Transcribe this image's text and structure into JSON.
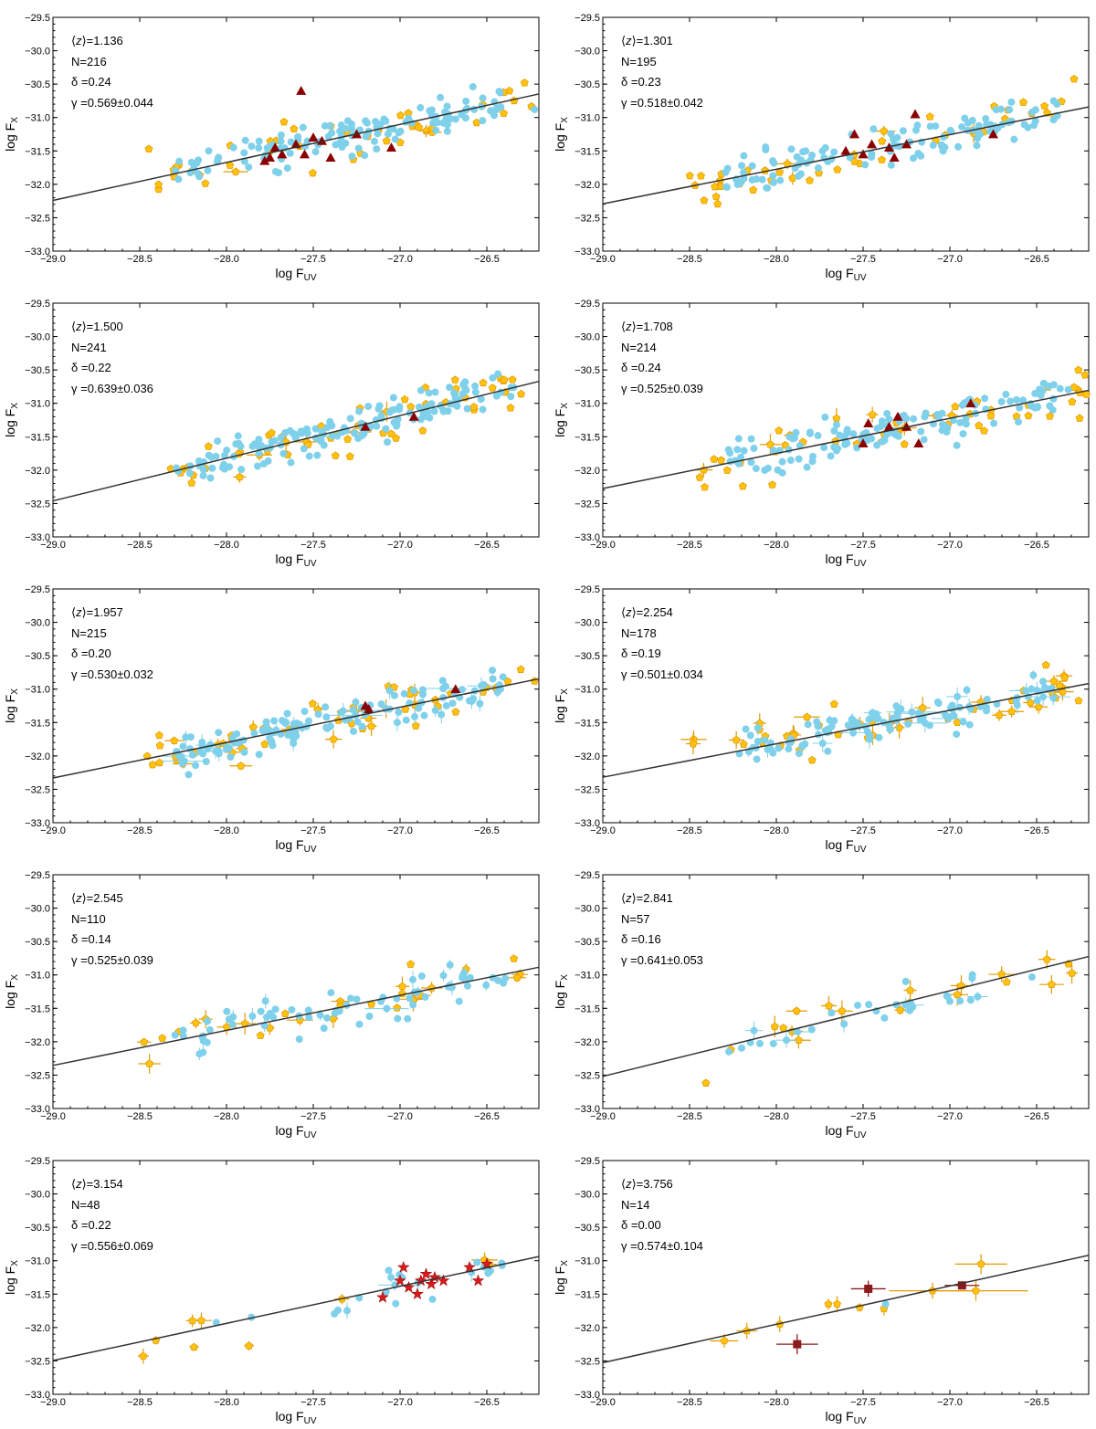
{
  "figure": {
    "colors": {
      "sdss": "#7fd0ea",
      "xmm": "#ffc20e",
      "xmm_edge": "#e59a00",
      "red_tri": "#8b0000",
      "red_star": "#d81b1b",
      "square": "#8b1a1a",
      "line": "#333333"
    },
    "axis_labels": {
      "x_base": "log F",
      "x_sub": "UV",
      "y_base": "log F",
      "y_sub": "X"
    },
    "annotation_labels": {
      "N": "N=",
      "delta": "δ =",
      "gamma": "γ ="
    },
    "x_ticks": [
      "−29.0",
      "−28.5",
      "−28.0",
      "−27.5",
      "−27.0",
      "−26.5"
    ],
    "y_ticks": [
      "−29.5",
      "−30.0",
      "−30.5",
      "−31.0",
      "−31.5",
      "−32.0",
      "−32.5",
      "−33.0"
    ]
  },
  "chart_data": [
    {
      "type": "scatter",
      "z": "1.136",
      "N": "216",
      "delta": "0.24",
      "gamma": "0.569±0.044",
      "xlim": [
        -29.0,
        -26.2
      ],
      "ylim": [
        -33.0,
        -29.5
      ],
      "fit": {
        "slope": 0.569,
        "intercept": -15.74
      },
      "seed": 11,
      "n_blue": 130,
      "n_yellow": 45,
      "yellow_err": 4,
      "red_triangles": [
        [
          -27.75,
          -31.6
        ],
        [
          -27.72,
          -31.45
        ],
        [
          -27.68,
          -31.55
        ],
        [
          -27.6,
          -31.4
        ],
        [
          -27.55,
          -31.55
        ],
        [
          -27.5,
          -31.3
        ],
        [
          -27.45,
          -31.35
        ],
        [
          -27.4,
          -31.6
        ],
        [
          -27.25,
          -31.25
        ],
        [
          -27.05,
          -31.45
        ],
        [
          -27.57,
          -30.6
        ],
        [
          -27.78,
          -31.65
        ]
      ],
      "red_stars": [],
      "squares": []
    },
    {
      "type": "scatter",
      "z": "1.301",
      "N": "195",
      "delta": "0.23",
      "gamma": "0.518±0.042",
      "xlim": [
        -29.0,
        -26.2
      ],
      "ylim": [
        -33.0,
        -29.5
      ],
      "fit": {
        "slope": 0.518,
        "intercept": -17.27
      },
      "seed": 23,
      "n_blue": 120,
      "n_yellow": 45,
      "yellow_err": 4,
      "red_triangles": [
        [
          -27.55,
          -31.25
        ],
        [
          -27.5,
          -31.55
        ],
        [
          -27.45,
          -31.4
        ],
        [
          -27.35,
          -31.45
        ],
        [
          -27.32,
          -31.6
        ],
        [
          -27.25,
          -31.4
        ],
        [
          -27.2,
          -30.95
        ],
        [
          -26.75,
          -31.25
        ],
        [
          -27.6,
          -31.5
        ]
      ],
      "red_stars": [],
      "squares": []
    },
    {
      "type": "scatter",
      "z": "1.500",
      "N": "241",
      "delta": "0.22",
      "gamma": "0.639±0.036",
      "xlim": [
        -29.0,
        -26.2
      ],
      "ylim": [
        -33.0,
        -29.5
      ],
      "fit": {
        "slope": 0.639,
        "intercept": -13.93
      },
      "seed": 37,
      "n_blue": 150,
      "n_yellow": 55,
      "yellow_err": 8,
      "red_triangles": [
        [
          -27.2,
          -31.35
        ],
        [
          -26.92,
          -31.2
        ]
      ],
      "red_stars": [],
      "squares": []
    },
    {
      "type": "scatter",
      "z": "1.708",
      "N": "214",
      "delta": "0.24",
      "gamma": "0.525±0.039",
      "xlim": [
        -29.0,
        -26.2
      ],
      "ylim": [
        -33.0,
        -29.5
      ],
      "fit": {
        "slope": 0.525,
        "intercept": -17.05
      },
      "seed": 41,
      "n_blue": 130,
      "n_yellow": 50,
      "yellow_err": 8,
      "red_triangles": [
        [
          -27.5,
          -31.6
        ],
        [
          -27.47,
          -31.3
        ],
        [
          -27.35,
          -31.35
        ],
        [
          -27.3,
          -31.2
        ],
        [
          -27.25,
          -31.35
        ],
        [
          -27.18,
          -31.6
        ],
        [
          -26.88,
          -31.0
        ]
      ],
      "red_stars": [],
      "squares": []
    },
    {
      "type": "scatter",
      "z": "1.957",
      "N": "215",
      "delta": "0.20",
      "gamma": "0.530±0.032",
      "xlim": [
        -29.0,
        -26.2
      ],
      "ylim": [
        -33.0,
        -29.5
      ],
      "fit": {
        "slope": 0.53,
        "intercept": -16.96
      },
      "seed": 53,
      "n_blue": 130,
      "n_yellow": 55,
      "yellow_err": 18,
      "red_triangles": [
        [
          -27.2,
          -31.25
        ],
        [
          -27.18,
          -31.3
        ],
        [
          -26.68,
          -31.0
        ]
      ],
      "red_stars": [],
      "squares": []
    },
    {
      "type": "scatter",
      "z": "2.254",
      "N": "178",
      "delta": "0.19",
      "gamma": "0.501±0.034",
      "xlim": [
        -29.0,
        -26.2
      ],
      "ylim": [
        -33.0,
        -29.5
      ],
      "fit": {
        "slope": 0.501,
        "intercept": -17.79
      },
      "seed": 61,
      "n_blue": 110,
      "n_yellow": 50,
      "yellow_err": 22,
      "red_triangles": [],
      "red_stars": [],
      "squares": []
    },
    {
      "type": "scatter",
      "z": "2.545",
      "N": "110",
      "delta": "0.14",
      "gamma": "0.525±0.039",
      "xlim": [
        -29.0,
        -26.2
      ],
      "ylim": [
        -33.0,
        -29.5
      ],
      "fit": {
        "slope": 0.525,
        "intercept": -17.13
      },
      "seed": 71,
      "n_blue": 70,
      "n_yellow": 28,
      "yellow_err": 18,
      "red_triangles": [],
      "red_stars": [],
      "squares": []
    },
    {
      "type": "scatter",
      "z": "2.841",
      "N": "57",
      "delta": "0.16",
      "gamma": "0.641±0.053",
      "xlim": [
        -29.0,
        -26.2
      ],
      "ylim": [
        -33.0,
        -29.5
      ],
      "fit": {
        "slope": 0.641,
        "intercept": -13.93
      },
      "seed": 83,
      "n_blue": 30,
      "n_yellow": 20,
      "yellow_err": 15,
      "red_triangles": [],
      "red_stars": [],
      "squares": []
    },
    {
      "type": "scatter",
      "z": "3.154",
      "N": "48",
      "delta": "0.22",
      "gamma": "0.556±0.069",
      "xlim": [
        -29.0,
        -26.2
      ],
      "ylim": [
        -33.0,
        -29.5
      ],
      "fit": {
        "slope": 0.556,
        "intercept": -16.37
      },
      "seed": 97,
      "n_blue": 22,
      "n_yellow": 9,
      "yellow_err": 9,
      "red_triangles": [],
      "red_stars": [
        [
          -27.1,
          -31.55
        ],
        [
          -27.0,
          -31.3
        ],
        [
          -26.98,
          -31.1
        ],
        [
          -26.95,
          -31.4
        ],
        [
          -26.9,
          -31.5
        ],
        [
          -26.88,
          -31.3
        ],
        [
          -26.85,
          -31.2
        ],
        [
          -26.82,
          -31.35
        ],
        [
          -26.8,
          -31.25
        ],
        [
          -26.75,
          -31.3
        ],
        [
          -26.6,
          -31.1
        ],
        [
          -26.55,
          -31.3
        ],
        [
          -26.5,
          -31.05
        ]
      ],
      "squares": []
    },
    {
      "type": "scatter",
      "z": "3.756",
      "N": "14",
      "delta": "0.00",
      "gamma": "0.574±0.104",
      "xlim": [
        -29.0,
        -26.2
      ],
      "ylim": [
        -33.0,
        -29.5
      ],
      "fit": {
        "slope": 0.574,
        "intercept": -15.88
      },
      "seed": 0,
      "n_blue": 0,
      "n_yellow": 0,
      "yellow_err": 0,
      "red_triangles": [],
      "red_stars": [],
      "yellow_pts": [
        [
          -28.3,
          -32.2,
          0.08,
          0.1
        ],
        [
          -28.17,
          -32.05,
          0.06,
          0.12
        ],
        [
          -27.98,
          -31.95,
          0.02,
          0.12
        ],
        [
          -27.7,
          -31.65,
          0.02,
          0.08
        ],
        [
          -27.65,
          -31.65,
          0.02,
          0.12
        ],
        [
          -27.52,
          -31.7,
          0.02,
          0.06
        ],
        [
          -27.38,
          -31.72,
          0.02,
          0.1
        ],
        [
          -27.1,
          -31.45,
          0.25,
          0.12
        ],
        [
          -26.85,
          -31.45,
          0.3,
          0.15
        ],
        [
          -26.82,
          -31.05,
          0.15,
          0.15
        ]
      ],
      "blue_pts": [
        [
          -27.37,
          -31.65
        ]
      ],
      "squares": [
        [
          -27.47,
          -31.42,
          0.1,
          0.12
        ],
        [
          -27.88,
          -32.25,
          0.12,
          0.15
        ],
        [
          -26.93,
          -31.37,
          0.1,
          0.06
        ]
      ]
    }
  ]
}
